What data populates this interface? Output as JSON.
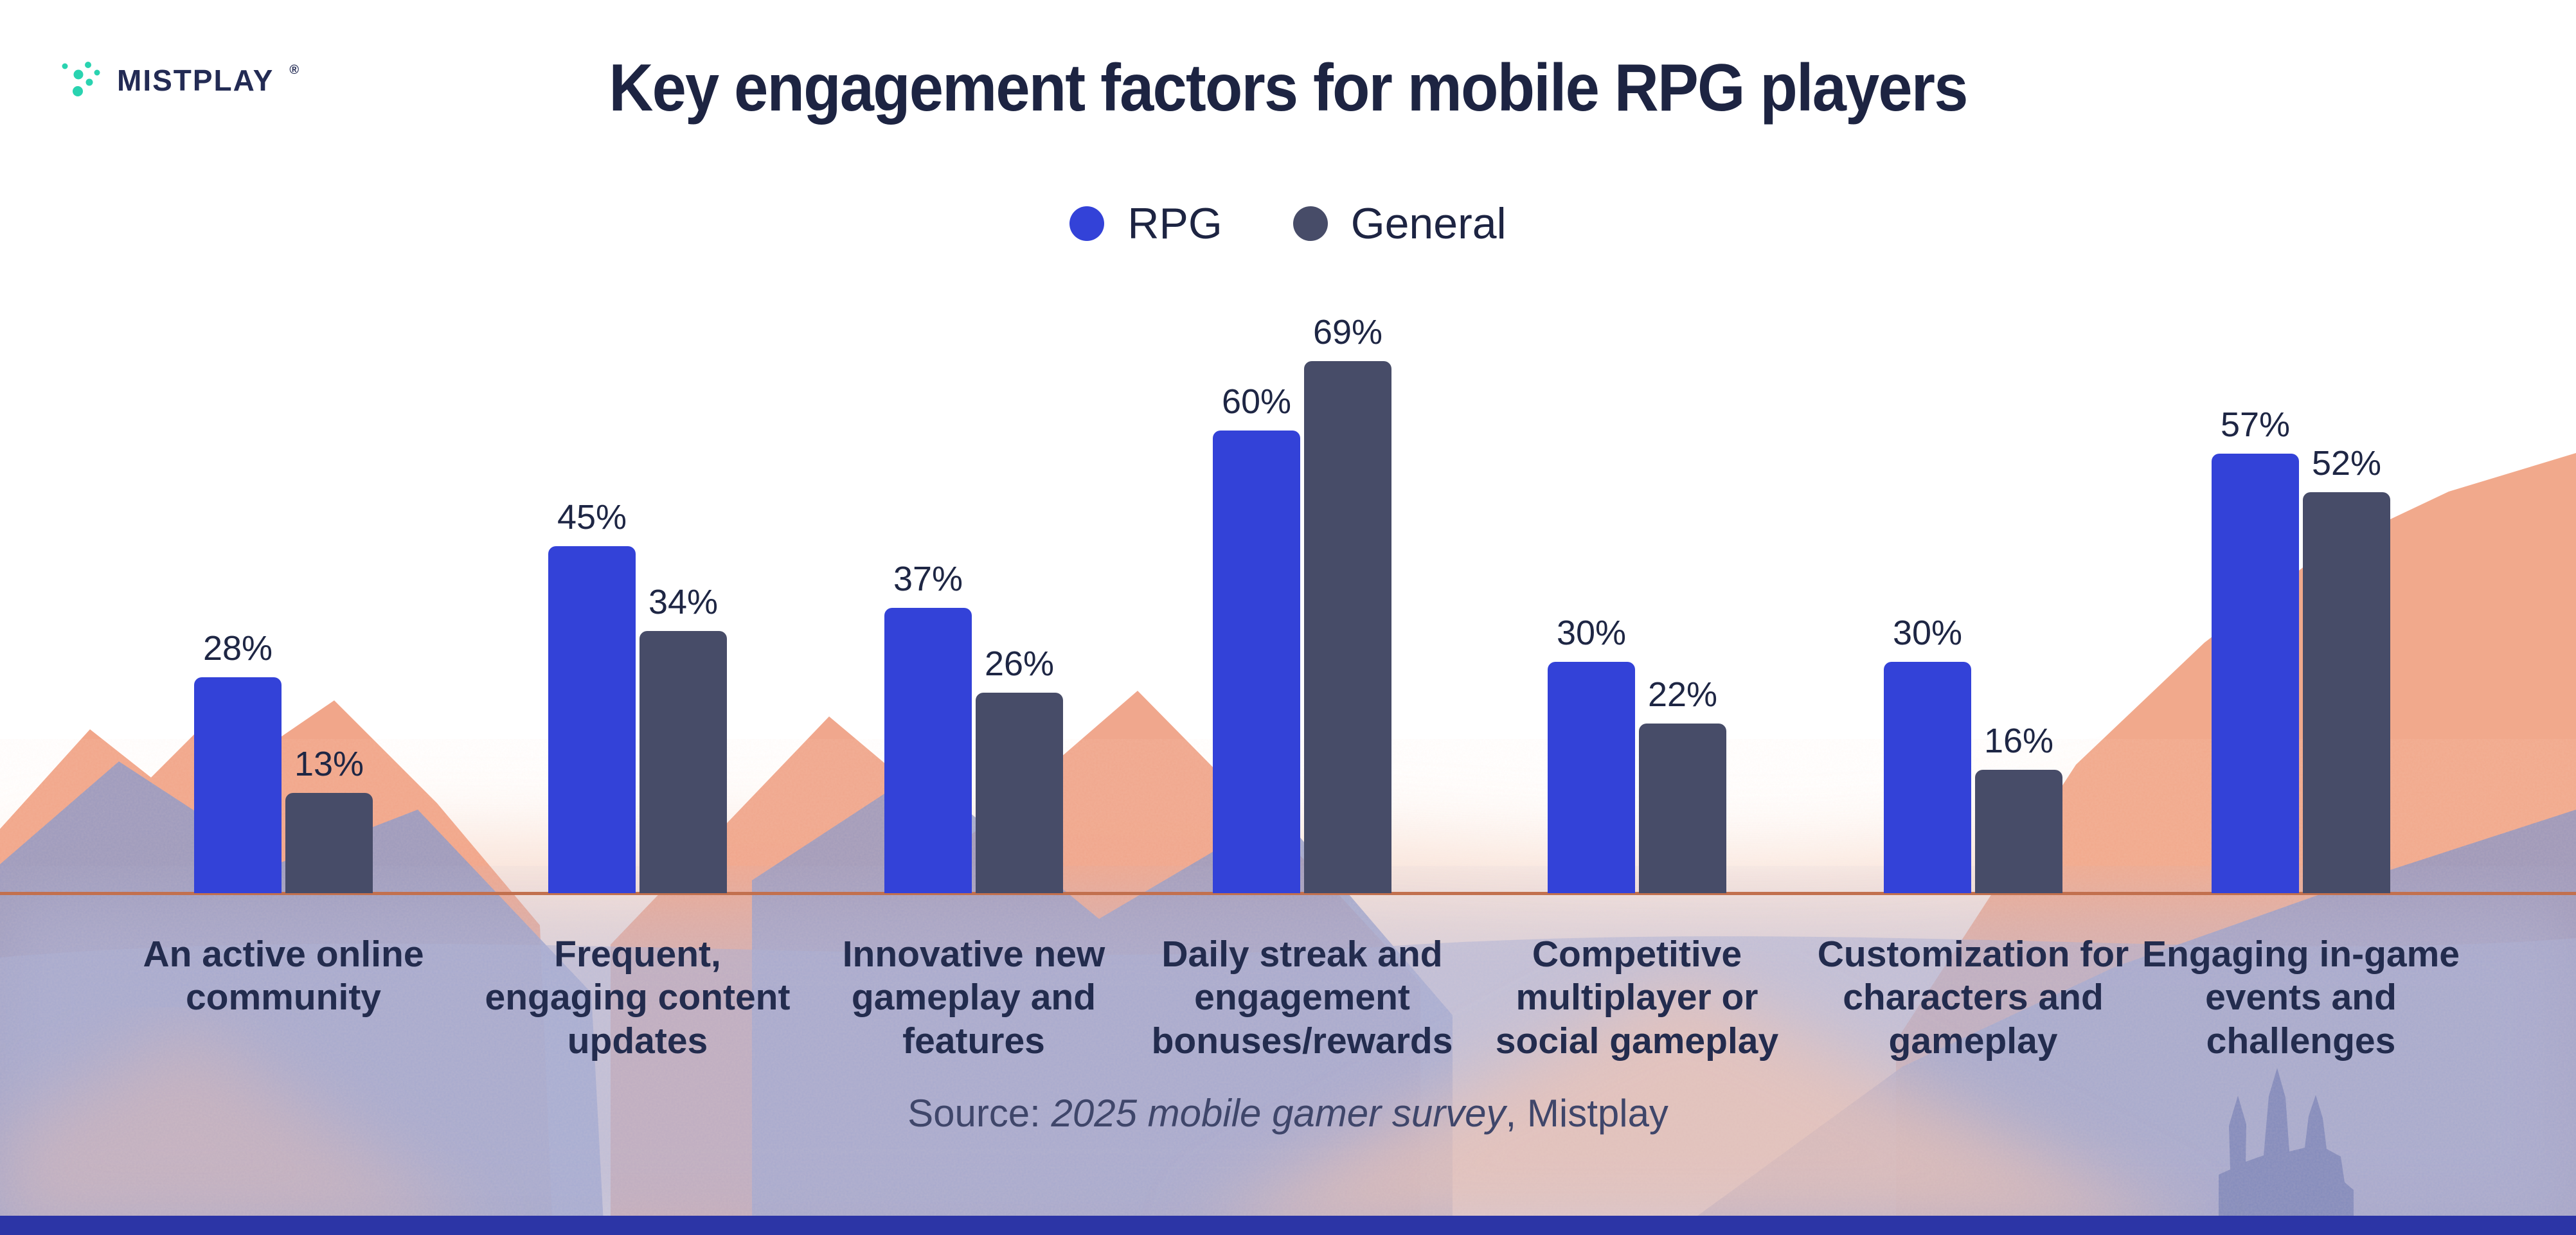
{
  "brand": {
    "logo_text": "MISTPLAY",
    "registered": "®",
    "logo_teal": "#29d3b0",
    "logo_navy": "#232b54"
  },
  "title": "Key engagement factors for mobile RPG players",
  "legend": [
    {
      "label": "RPG",
      "color": "#3342d8"
    },
    {
      "label": "General",
      "color": "#474c68"
    }
  ],
  "chart_data": {
    "type": "bar",
    "title": "Key engagement factors for mobile RPG players",
    "categories": [
      "An active online community",
      "Frequent, engaging content updates",
      "Innovative new gameplay and features",
      "Daily streak and engagement bonuses/rewards",
      "Competitive multiplayer or social gameplay",
      "Customization for characters and gameplay",
      "Engaging in-game events and challenges"
    ],
    "categories_wrapped": [
      [
        "An active online",
        "community"
      ],
      [
        "Frequent,",
        "engaging content",
        "updates"
      ],
      [
        "Innovative new",
        "gameplay and",
        "features"
      ],
      [
        "Daily streak and",
        "engagement",
        "bonuses/rewards"
      ],
      [
        "Competitive",
        "multiplayer or",
        "social gameplay"
      ],
      [
        "Customization for",
        "characters and",
        "gameplay"
      ],
      [
        "Engaging in-game",
        "events and",
        "challenges"
      ]
    ],
    "series": [
      {
        "name": "RPG",
        "color": "#3342d8",
        "values": [
          28,
          45,
          37,
          60,
          30,
          30,
          57
        ]
      },
      {
        "name": "General",
        "color": "#474c68",
        "values": [
          13,
          34,
          26,
          69,
          22,
          16,
          52
        ]
      }
    ],
    "value_suffix": "%",
    "ylim": [
      0,
      100
    ],
    "grid": false,
    "legend_position": "top",
    "xlabel": "",
    "ylabel": "",
    "source": "Source: 2025 mobile gamer survey, Mistplay"
  },
  "source": {
    "prefix": "Source: ",
    "italic": "2025 mobile gamer survey",
    "suffix": ", Mistplay"
  },
  "colors": {
    "title_navy": "#1d2442",
    "category_navy": "#232c4e",
    "axis_orange": "#c2704e",
    "rpg_blue": "#3342d8",
    "general_slate": "#474c68",
    "source_slate": "#3f466a",
    "bottom_bar_blue": "#2c35a6"
  }
}
